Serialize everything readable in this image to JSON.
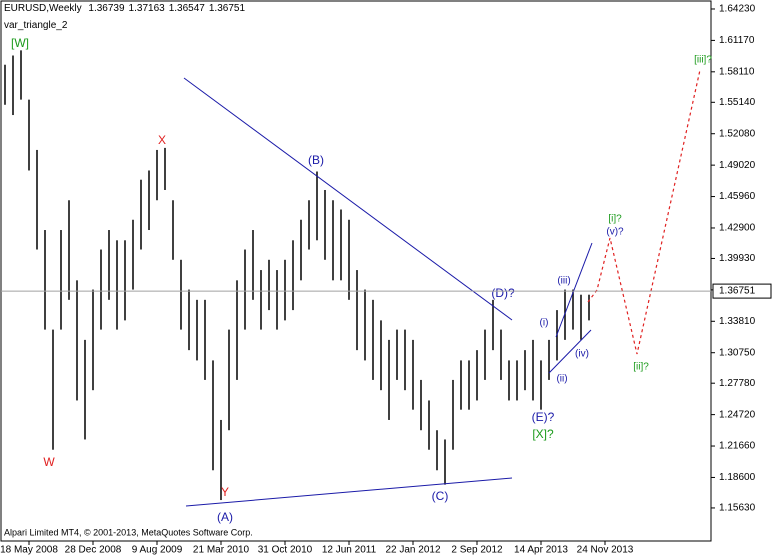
{
  "chart_data": {
    "type": "ohlc",
    "header": {
      "symbol": "EURUSD,Weekly",
      "open": 1.36739,
      "high": 1.37163,
      "low": 1.36547,
      "close": 1.36751
    },
    "indicator": "var_triangle_2",
    "footer": "Alpari Limited MT4, © 2001-2013, MetaQuotes Software Corp.",
    "x": [
      -12,
      -8,
      -4,
      0,
      4,
      8,
      12,
      16,
      20,
      24,
      28,
      32,
      36,
      40,
      44,
      48,
      52,
      56,
      60,
      64,
      68,
      72,
      76,
      80,
      84,
      88,
      92,
      96,
      100,
      104,
      108,
      112,
      116,
      120,
      124,
      128,
      132,
      136,
      140,
      144,
      148,
      152,
      156,
      160,
      164,
      168,
      172,
      176,
      180,
      184,
      188,
      192,
      196,
      200,
      204,
      208,
      212,
      216,
      220,
      224,
      228,
      232,
      236,
      240,
      244,
      248,
      252,
      256,
      260,
      264,
      268,
      272,
      276,
      280
    ],
    "series": [
      {
        "name": "High",
        "color": "#000000",
        "values": [
          1.588,
          1.597,
          1.602,
          1.554,
          1.505,
          1.427,
          1.33,
          1.427,
          1.456,
          1.378,
          1.32,
          1.369,
          1.408,
          1.427,
          1.417,
          1.417,
          1.437,
          1.476,
          1.485,
          1.505,
          1.507,
          1.456,
          1.398,
          1.369,
          1.359,
          1.359,
          1.3,
          1.242,
          1.33,
          1.378,
          1.408,
          1.427,
          1.388,
          1.398,
          1.388,
          1.398,
          1.417,
          1.437,
          1.456,
          1.484,
          1.466,
          1.456,
          1.447,
          1.437,
          1.388,
          1.369,
          1.359,
          1.339,
          1.32,
          1.33,
          1.33,
          1.32,
          1.281,
          1.261,
          1.232,
          1.223,
          1.281,
          1.3,
          1.3,
          1.31,
          1.33,
          1.359,
          1.33,
          1.3,
          1.3,
          1.31,
          1.32,
          1.3,
          1.32,
          1.349,
          1.369,
          1.369,
          1.364,
          1.364
        ]
      },
      {
        "name": "Low",
        "color": "#000000",
        "values": [
          1.549,
          1.539,
          1.554,
          1.485,
          1.408,
          1.33,
          1.213,
          1.33,
          1.359,
          1.261,
          1.223,
          1.271,
          1.33,
          1.359,
          1.33,
          1.339,
          1.369,
          1.408,
          1.427,
          1.456,
          1.466,
          1.398,
          1.33,
          1.31,
          1.3,
          1.281,
          1.193,
          1.164,
          1.232,
          1.281,
          1.33,
          1.359,
          1.33,
          1.349,
          1.33,
          1.339,
          1.349,
          1.378,
          1.408,
          1.417,
          1.398,
          1.378,
          1.378,
          1.359,
          1.31,
          1.3,
          1.281,
          1.271,
          1.242,
          1.281,
          1.271,
          1.252,
          1.232,
          1.213,
          1.193,
          1.179,
          1.213,
          1.252,
          1.252,
          1.261,
          1.281,
          1.31,
          1.281,
          1.261,
          1.261,
          1.271,
          1.261,
          1.252,
          1.281,
          1.3,
          1.32,
          1.33,
          1.32,
          1.339
        ]
      }
    ],
    "last_price": 1.36751,
    "xlim": [
      -14,
      341
    ],
    "ylim": [
      1.1241,
      1.6491
    ],
    "xticks": [
      {
        "value": 0,
        "label": "18 May 2008"
      },
      {
        "value": 32,
        "label": "28 Dec 2008"
      },
      {
        "value": 64,
        "label": "9 Aug 2009"
      },
      {
        "value": 96,
        "label": "21 Mar 2010"
      },
      {
        "value": 128,
        "label": "31 Oct 2010"
      },
      {
        "value": 160,
        "label": "12 Jun 2011"
      },
      {
        "value": 192,
        "label": "22 Jan 2012"
      },
      {
        "value": 224,
        "label": "2 Sep 2012"
      },
      {
        "value": 256,
        "label": "14 Apr 2013"
      },
      {
        "value": 288,
        "label": "24 Nov 2013"
      }
    ],
    "yticks": [
      {
        "value": 1.6423,
        "label": "1.64230"
      },
      {
        "value": 1.6117,
        "label": "1.61170"
      },
      {
        "value": 1.5811,
        "label": "1.58110"
      },
      {
        "value": 1.5514,
        "label": "1.55140"
      },
      {
        "value": 1.5208,
        "label": "1.52080"
      },
      {
        "value": 1.4902,
        "label": "1.49020"
      },
      {
        "value": 1.4596,
        "label": "1.45960"
      },
      {
        "value": 1.429,
        "label": "1.42900"
      },
      {
        "value": 1.3993,
        "label": "1.39930"
      },
      {
        "value": 1.3687,
        "label": "1.36870"
      },
      {
        "value": 1.3381,
        "label": "1.33810"
      },
      {
        "value": 1.3075,
        "label": "1.30750"
      },
      {
        "value": 1.2778,
        "label": "1.27780"
      },
      {
        "value": 1.2472,
        "label": "1.24720"
      },
      {
        "value": 1.2166,
        "label": "1.21660"
      },
      {
        "value": 1.186,
        "label": "1.18600"
      },
      {
        "value": 1.1563,
        "label": "1.15630"
      }
    ],
    "annotations": [
      "[W]",
      "W",
      "X",
      "Y",
      "(A)",
      "(B)",
      "(C)",
      "(D)?",
      "(E)?",
      "[X]?",
      "(i)",
      "(ii)",
      "(iii)",
      "(iv)",
      "(v)?",
      "[i]?",
      "[ii]?",
      "[iii]?"
    ]
  }
}
